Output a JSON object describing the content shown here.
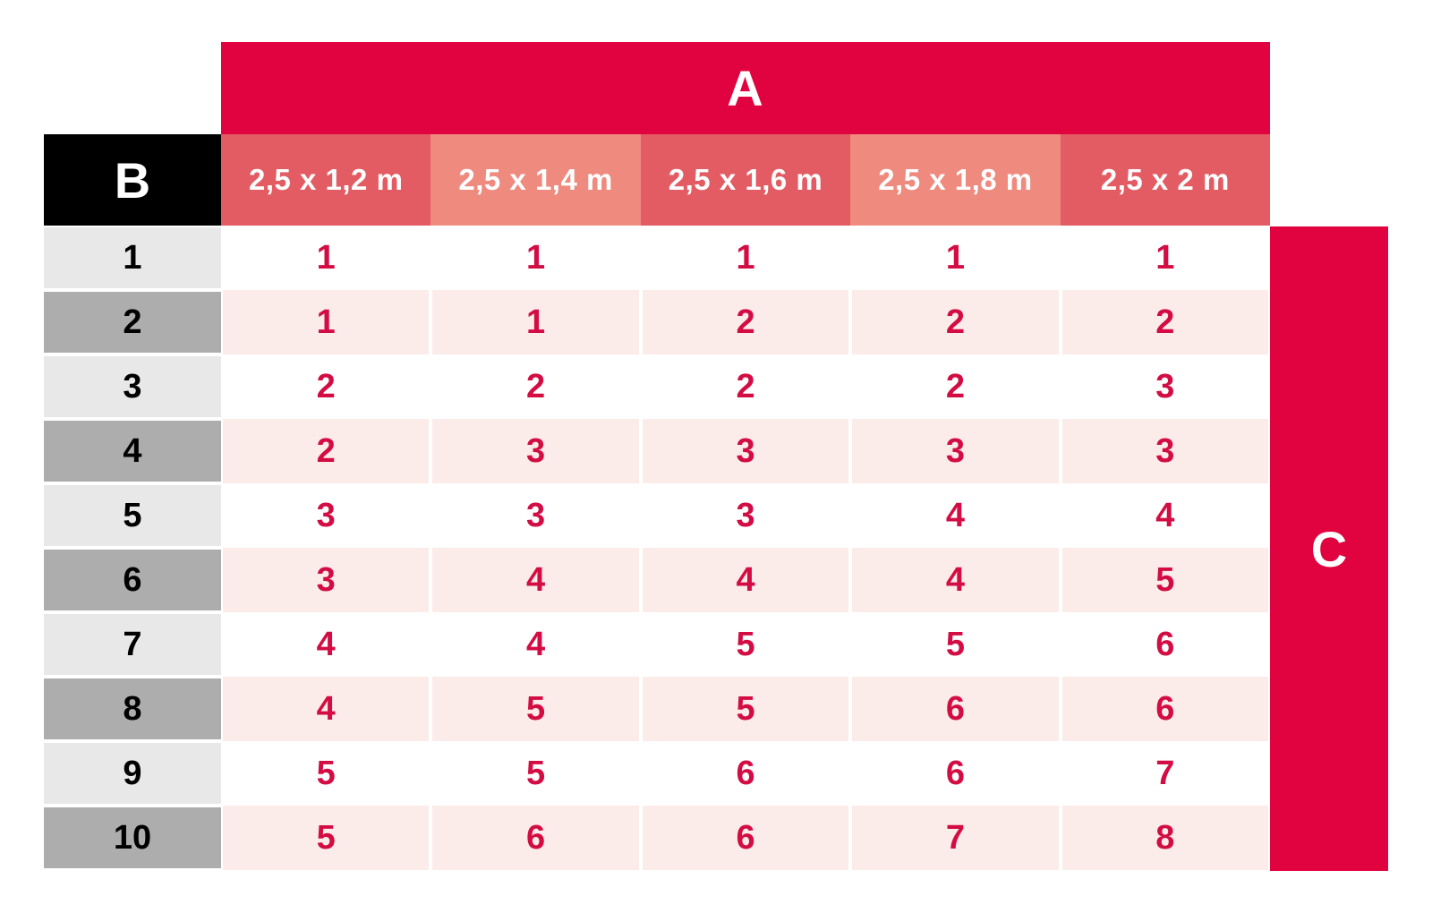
{
  "chart_data": {
    "type": "table",
    "band_a_label": "A",
    "corner_label": "B",
    "band_c_label": "C",
    "column_headers": [
      "2,5 x 1,2 m",
      "2,5 x 1,4 m",
      "2,5 x 1,6 m",
      "2,5 x 1,8 m",
      "2,5 x 2 m"
    ],
    "row_labels": [
      "1",
      "2",
      "3",
      "4",
      "5",
      "6",
      "7",
      "8",
      "9",
      "10"
    ],
    "rows": [
      [
        1,
        1,
        1,
        1,
        1
      ],
      [
        1,
        1,
        2,
        2,
        2
      ],
      [
        2,
        2,
        2,
        2,
        3
      ],
      [
        2,
        3,
        3,
        3,
        3
      ],
      [
        3,
        3,
        3,
        4,
        4
      ],
      [
        3,
        4,
        4,
        4,
        5
      ],
      [
        4,
        4,
        5,
        5,
        6
      ],
      [
        4,
        5,
        5,
        6,
        6
      ],
      [
        5,
        5,
        6,
        6,
        7
      ],
      [
        5,
        6,
        6,
        7,
        8
      ]
    ],
    "layout_hints": {
      "header_shade_pattern": [
        "dark",
        "light",
        "dark",
        "light",
        "dark"
      ],
      "row_shade_pattern": "odd rows white, even rows pink; labels odd light-gray, even dark-gray"
    }
  },
  "colors": {
    "band": "#E0033F",
    "header_dark": "#E35C63",
    "header_light": "#EF8A7F",
    "row_pink": "#FCECE9",
    "label_light": "#E8E8E8",
    "label_dark": "#ADADAD",
    "value_red": "#D30D44",
    "corner_black": "#000000"
  }
}
